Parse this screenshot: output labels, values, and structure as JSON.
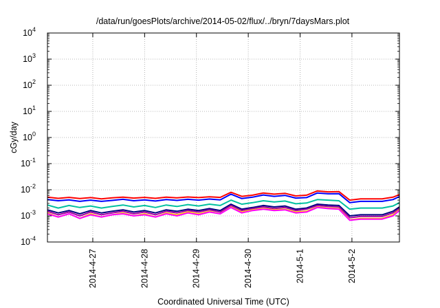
{
  "chart_data": {
    "type": "line",
    "title": "/data/run/goesPlots/archive/2014-05-02/flux/../bryn/7daysMars.plot",
    "xlabel": "Coordinated Universal Time (UTC)",
    "ylabel": "cGy/day",
    "y_scale": "log",
    "ylim": [
      0.0001,
      10000
    ],
    "xlim": [
      "2014-04-26T03:00",
      "2014-05-02T22:00"
    ],
    "grid": true,
    "y_ticks": [
      {
        "value": 0.0001,
        "base": "10",
        "exp": "-4"
      },
      {
        "value": 0.001,
        "base": "10",
        "exp": "-3"
      },
      {
        "value": 0.01,
        "base": "10",
        "exp": "-2"
      },
      {
        "value": 0.1,
        "base": "10",
        "exp": "-1"
      },
      {
        "value": 1,
        "base": "10",
        "exp": "0"
      },
      {
        "value": 10,
        "base": "10",
        "exp": "1"
      },
      {
        "value": 100,
        "base": "10",
        "exp": "2"
      },
      {
        "value": 1000,
        "base": "10",
        "exp": "3"
      },
      {
        "value": 10000,
        "base": "10",
        "exp": "4"
      }
    ],
    "x_ticks": [
      {
        "label": "2014-4-27",
        "value": "2014-04-27T00:00"
      },
      {
        "label": "2014-4-28",
        "value": "2014-04-28T00:00"
      },
      {
        "label": "2014-4-29",
        "value": "2014-04-29T00:00"
      },
      {
        "label": "2014-4-30",
        "value": "2014-04-30T00:00"
      },
      {
        "label": "2014-5-1",
        "value": "2014-05-01T00:00"
      },
      {
        "label": "2014-5-2",
        "value": "2014-05-02T00:00"
      }
    ],
    "x": [
      "2014-04-26T03:00",
      "2014-04-26T08:00",
      "2014-04-26T13:00",
      "2014-04-26T18:00",
      "2014-04-26T23:00",
      "2014-04-27T04:00",
      "2014-04-27T09:00",
      "2014-04-27T14:00",
      "2014-04-27T19:00",
      "2014-04-28T00:00",
      "2014-04-28T05:00",
      "2014-04-28T10:00",
      "2014-04-28T15:00",
      "2014-04-28T20:00",
      "2014-04-29T01:00",
      "2014-04-29T06:00",
      "2014-04-29T11:00",
      "2014-04-29T16:00",
      "2014-04-29T21:00",
      "2014-04-30T02:00",
      "2014-04-30T07:00",
      "2014-04-30T12:00",
      "2014-04-30T17:00",
      "2014-04-30T22:00",
      "2014-05-01T03:00",
      "2014-05-01T08:00",
      "2014-05-01T13:00",
      "2014-05-01T18:00",
      "2014-05-01T23:00",
      "2014-05-02T04:00",
      "2014-05-02T09:00",
      "2014-05-02T14:00",
      "2014-05-02T19:00",
      "2014-05-02T22:00"
    ],
    "series": [
      {
        "color": "#ff0000",
        "values": [
          0.0052,
          0.0047,
          0.0051,
          0.0046,
          0.005,
          0.0045,
          0.0049,
          0.0052,
          0.0048,
          0.0051,
          0.0047,
          0.0052,
          0.0049,
          0.0053,
          0.005,
          0.0054,
          0.0051,
          0.008,
          0.0056,
          0.0062,
          0.0075,
          0.0068,
          0.0073,
          0.0058,
          0.0062,
          0.009,
          0.0083,
          0.0085,
          0.004,
          0.0045,
          0.0045,
          0.0045,
          0.0052,
          0.0065
        ]
      },
      {
        "color": "#0000ff",
        "values": [
          0.0042,
          0.0038,
          0.0041,
          0.0036,
          0.004,
          0.0036,
          0.0039,
          0.0043,
          0.0038,
          0.0041,
          0.0037,
          0.0042,
          0.0039,
          0.0043,
          0.004,
          0.0044,
          0.0041,
          0.0068,
          0.0046,
          0.0052,
          0.0063,
          0.0056,
          0.0061,
          0.0048,
          0.005,
          0.0075,
          0.007,
          0.0071,
          0.0032,
          0.0036,
          0.0036,
          0.0036,
          0.0042,
          0.0055
        ]
      },
      {
        "color": "#00c0a0",
        "values": [
          0.0026,
          0.002,
          0.0025,
          0.0021,
          0.0024,
          0.002,
          0.0023,
          0.0026,
          0.0022,
          0.0025,
          0.0021,
          0.0026,
          0.0023,
          0.0027,
          0.0024,
          0.0028,
          0.0025,
          0.004,
          0.0028,
          0.0032,
          0.0038,
          0.0034,
          0.0037,
          0.0029,
          0.0031,
          0.0042,
          0.004,
          0.0038,
          0.0018,
          0.002,
          0.002,
          0.002,
          0.0024,
          0.0032
        ]
      },
      {
        "color": "#000080",
        "values": [
          0.0017,
          0.0013,
          0.0016,
          0.0012,
          0.0016,
          0.0013,
          0.0015,
          0.0017,
          0.0014,
          0.0016,
          0.0013,
          0.0017,
          0.0015,
          0.0018,
          0.0016,
          0.0019,
          0.0016,
          0.0028,
          0.0018,
          0.0021,
          0.0025,
          0.0022,
          0.0024,
          0.0018,
          0.002,
          0.0028,
          0.0026,
          0.0025,
          0.001,
          0.0011,
          0.0011,
          0.0011,
          0.0015,
          0.0022
        ]
      },
      {
        "color": "#a000a0",
        "values": [
          0.0015,
          0.0011,
          0.0014,
          0.001,
          0.0014,
          0.0011,
          0.0013,
          0.0015,
          0.0012,
          0.0014,
          0.0011,
          0.0015,
          0.0013,
          0.0016,
          0.0014,
          0.0017,
          0.0014,
          0.0025,
          0.0016,
          0.0019,
          0.0022,
          0.0019,
          0.0021,
          0.0016,
          0.0018,
          0.0025,
          0.0023,
          0.0022,
          0.00085,
          0.00095,
          0.00095,
          0.00095,
          0.0013,
          0.0019
        ]
      },
      {
        "color": "#ffd000",
        "values": [
          0.0013,
          0.0009,
          0.0012,
          0.0008,
          0.0012,
          0.0009,
          0.0011,
          0.0013,
          0.001,
          0.0012,
          0.0009,
          0.0013,
          0.0011,
          0.0014,
          0.0012,
          0.0015,
          0.0012,
          0.0022,
          0.0014,
          0.0017,
          0.0019,
          0.0017,
          0.0018,
          0.0014,
          0.0015,
          0.0022,
          0.002,
          0.0019,
          0.0007,
          0.0008,
          0.0008,
          0.0008,
          0.0011,
          0.0017
        ]
      },
      {
        "color": "#ff00ff",
        "values": [
          0.0012,
          0.0009,
          0.0012,
          0.0008,
          0.0011,
          0.0009,
          0.0011,
          0.0012,
          0.001,
          0.0011,
          0.0009,
          0.0012,
          0.001,
          0.0013,
          0.0011,
          0.0014,
          0.0012,
          0.0021,
          0.0013,
          0.0016,
          0.0018,
          0.0016,
          0.0017,
          0.0013,
          0.0014,
          0.0021,
          0.0019,
          0.0018,
          0.00068,
          0.00075,
          0.00075,
          0.00075,
          0.001,
          0.0016
        ]
      }
    ]
  }
}
